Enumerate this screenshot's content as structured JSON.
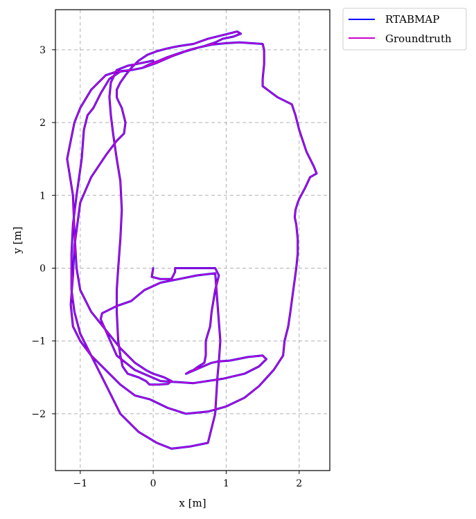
{
  "chart_data": {
    "type": "line",
    "title": "",
    "xlabel": "x [m]",
    "ylabel": "y [m]",
    "xlim": [
      -1.34,
      2.42
    ],
    "ylim": [
      -2.78,
      3.55
    ],
    "xticks": [
      -1,
      0,
      1,
      2
    ],
    "yticks": [
      -2,
      -1,
      0,
      1,
      2,
      3
    ],
    "xtick_labels": [
      "−1",
      "0",
      "1",
      "2"
    ],
    "ytick_labels": [
      "−2",
      "−1",
      "0",
      "1",
      "2",
      "3"
    ],
    "grid": true,
    "legend_position": "outside-top-right",
    "series": [
      {
        "name": "RTABMAP",
        "color": "#0000ff",
        "x": [
          0.0,
          -0.02,
          0.1,
          0.25,
          0.3,
          0.3,
          0.4,
          0.55,
          0.7,
          0.85,
          0.9,
          0.85,
          0.8,
          0.78,
          0.75,
          0.72,
          0.72,
          0.7,
          0.62,
          0.55,
          0.5,
          0.45,
          0.8,
          0.9,
          1.05,
          1.3,
          1.5,
          1.55,
          1.45,
          1.25,
          0.95,
          0.55,
          0.1,
          -0.25,
          -0.5,
          -0.72,
          -0.7,
          -0.5,
          -0.3,
          -0.12,
          0.1,
          0.35,
          0.6,
          0.85,
          0.92,
          0.9,
          0.88,
          0.85,
          0.75,
          0.5,
          0.25,
          0.05,
          -0.2,
          -0.45,
          -0.65,
          -0.85,
          -1.0,
          -1.08,
          -1.12,
          -1.12,
          -1.1,
          -1.05,
          -0.98,
          -0.95,
          -0.9,
          -0.82,
          -0.72,
          -0.6,
          -0.45,
          -0.3,
          -0.15,
          0.05,
          0.28,
          0.45,
          0.62,
          0.8,
          1.0,
          1.18,
          1.5,
          1.52,
          1.52,
          1.5,
          1.5,
          1.7,
          1.9,
          1.95,
          2.0,
          2.1,
          2.2,
          2.24,
          2.15,
          2.08,
          2.0,
          1.98,
          1.95,
          1.94,
          1.96,
          1.98,
          1.98,
          1.96,
          1.92,
          1.88,
          1.85,
          1.8,
          1.78,
          1.65,
          1.45,
          1.25,
          1.0,
          0.75,
          0.45,
          0.2,
          -0.05,
          -0.25,
          -0.45,
          -0.65,
          -0.85,
          -1.0,
          -1.1,
          -1.13,
          -1.1,
          -1.08,
          -1.0,
          -0.85,
          -0.65,
          -0.5,
          -0.4,
          -0.38,
          -0.43,
          -0.48,
          -0.5,
          -0.5,
          -0.45,
          -0.38,
          -0.3,
          -0.2,
          -0.08,
          0.05,
          0.2,
          0.35,
          0.55,
          0.75,
          0.95,
          1.15,
          1.2,
          1.1,
          0.95,
          0.85,
          0.7,
          0.5,
          0.35,
          0.2,
          0.08,
          -0.05,
          -0.15,
          -0.3,
          -0.5,
          -0.65,
          -0.75,
          -0.85,
          -1.0,
          -1.08,
          -1.15,
          -1.18,
          -1.1,
          -1.08,
          -1.05,
          -1.0,
          -0.85,
          -0.65,
          -0.45,
          -0.25,
          -0.1,
          0.0,
          0.15,
          0.25,
          0.2,
          0.08,
          0.02,
          -0.05,
          -0.1,
          -0.2,
          -0.35,
          -0.42,
          -0.45,
          -0.48,
          -0.5,
          -0.5,
          -0.48,
          -0.45,
          -0.43,
          -0.45,
          -0.5,
          -0.55,
          -0.58,
          -0.6,
          -0.58,
          -0.5,
          -0.35,
          -0.15,
          0.0
        ],
        "y": [
          0.0,
          -0.12,
          -0.15,
          -0.15,
          -0.05,
          0.0,
          0.0,
          0.0,
          0.0,
          0.0,
          -0.1,
          -0.3,
          -0.6,
          -0.8,
          -0.9,
          -1.0,
          -1.2,
          -1.3,
          -1.35,
          -1.4,
          -1.42,
          -1.45,
          -1.3,
          -1.28,
          -1.27,
          -1.22,
          -1.2,
          -1.25,
          -1.35,
          -1.45,
          -1.52,
          -1.58,
          -1.55,
          -1.4,
          -1.2,
          -0.7,
          -0.62,
          -0.52,
          -0.45,
          -0.3,
          -0.2,
          -0.15,
          -0.1,
          -0.07,
          -1.0,
          -1.28,
          -1.5,
          -2.0,
          -2.4,
          -2.45,
          -2.48,
          -2.4,
          -2.25,
          -2.0,
          -1.6,
          -1.2,
          -0.9,
          -0.6,
          -0.3,
          0.2,
          0.6,
          1.0,
          1.5,
          1.9,
          2.1,
          2.2,
          2.4,
          2.6,
          2.7,
          2.72,
          2.75,
          2.82,
          2.92,
          2.98,
          3.03,
          3.07,
          3.09,
          3.1,
          3.08,
          3.0,
          2.8,
          2.6,
          2.5,
          2.35,
          2.25,
          2.1,
          1.9,
          1.6,
          1.4,
          1.3,
          1.25,
          1.1,
          0.95,
          0.9,
          0.8,
          0.7,
          0.6,
          0.4,
          0.2,
          0.0,
          -0.3,
          -0.6,
          -0.8,
          -1.0,
          -1.2,
          -1.4,
          -1.62,
          -1.78,
          -1.9,
          -1.97,
          -2.0,
          -1.92,
          -1.8,
          -1.75,
          -1.6,
          -1.4,
          -1.2,
          -1.0,
          -0.8,
          -0.5,
          -0.1,
          0.3,
          0.9,
          1.25,
          1.55,
          1.75,
          1.85,
          2.0,
          2.2,
          2.3,
          2.35,
          2.45,
          2.55,
          2.65,
          2.75,
          2.85,
          2.93,
          2.98,
          3.02,
          3.05,
          3.08,
          3.15,
          3.2,
          3.25,
          3.22,
          3.18,
          3.15,
          3.1,
          3.05,
          3.0,
          2.95,
          2.9,
          2.85,
          2.8,
          2.75,
          2.72,
          2.7,
          2.65,
          2.55,
          2.45,
          2.2,
          2.0,
          1.65,
          1.5,
          1.0,
          0.5,
          0.0,
          -0.3,
          -0.6,
          -0.85,
          -1.1,
          -1.3,
          -1.4,
          -1.45,
          -1.5,
          -1.55,
          -1.59,
          -1.6,
          -1.6,
          -1.6,
          -1.55,
          -1.5,
          -1.45,
          -1.35,
          -1.2,
          -1.0,
          -0.6,
          -0.3,
          0.0,
          0.4,
          0.8,
          1.2,
          1.5,
          1.85,
          2.1,
          2.35,
          2.55,
          2.72,
          2.78,
          2.82,
          2.85
        ]
      },
      {
        "name": "Groundtruth",
        "color": "#cc00cc",
        "x": [
          0.0,
          -0.02,
          0.1,
          0.25,
          0.3,
          0.3,
          0.4,
          0.55,
          0.7,
          0.85,
          0.9,
          0.85,
          0.8,
          0.78,
          0.75,
          0.72,
          0.72,
          0.7,
          0.62,
          0.55,
          0.5,
          0.45,
          0.8,
          0.9,
          1.05,
          1.3,
          1.5,
          1.55,
          1.45,
          1.25,
          0.95,
          0.55,
          0.1,
          -0.25,
          -0.5,
          -0.72,
          -0.7,
          -0.5,
          -0.3,
          -0.12,
          0.1,
          0.35,
          0.6,
          0.85,
          0.92,
          0.9,
          0.88,
          0.85,
          0.75,
          0.5,
          0.25,
          0.05,
          -0.2,
          -0.45,
          -0.65,
          -0.85,
          -1.0,
          -1.08,
          -1.12,
          -1.12,
          -1.1,
          -1.05,
          -0.98,
          -0.95,
          -0.9,
          -0.82,
          -0.72,
          -0.6,
          -0.45,
          -0.3,
          -0.15,
          0.05,
          0.28,
          0.45,
          0.62,
          0.8,
          1.0,
          1.18,
          1.5,
          1.52,
          1.52,
          1.5,
          1.5,
          1.7,
          1.9,
          1.95,
          2.0,
          2.1,
          2.2,
          2.24,
          2.15,
          2.08,
          2.0,
          1.98,
          1.95,
          1.94,
          1.96,
          1.98,
          1.98,
          1.96,
          1.92,
          1.88,
          1.85,
          1.8,
          1.78,
          1.65,
          1.45,
          1.25,
          1.0,
          0.75,
          0.45,
          0.2,
          -0.05,
          -0.25,
          -0.45,
          -0.65,
          -0.85,
          -1.0,
          -1.1,
          -1.13,
          -1.1,
          -1.08,
          -1.0,
          -0.85,
          -0.65,
          -0.5,
          -0.4,
          -0.38,
          -0.43,
          -0.48,
          -0.5,
          -0.5,
          -0.45,
          -0.38,
          -0.3,
          -0.2,
          -0.08,
          0.05,
          0.2,
          0.35,
          0.55,
          0.75,
          0.95,
          1.15,
          1.2,
          1.1,
          0.95,
          0.85,
          0.7,
          0.5,
          0.35,
          0.2,
          0.08,
          -0.05,
          -0.15,
          -0.3,
          -0.5,
          -0.65,
          -0.75,
          -0.85,
          -1.0,
          -1.08,
          -1.15,
          -1.18,
          -1.1,
          -1.08,
          -1.05,
          -1.0,
          -0.85,
          -0.65,
          -0.45,
          -0.25,
          -0.1,
          0.0,
          0.15,
          0.25,
          0.2,
          0.08,
          0.02,
          -0.05,
          -0.1,
          -0.2,
          -0.35,
          -0.42,
          -0.45,
          -0.48,
          -0.5,
          -0.5,
          -0.48,
          -0.45,
          -0.43,
          -0.45,
          -0.5,
          -0.55,
          -0.58,
          -0.6,
          -0.58,
          -0.5,
          -0.35,
          -0.15,
          0.0
        ],
        "y": [
          0.0,
          -0.12,
          -0.15,
          -0.15,
          -0.05,
          0.0,
          0.0,
          0.0,
          0.0,
          0.0,
          -0.1,
          -0.3,
          -0.6,
          -0.8,
          -0.9,
          -1.0,
          -1.2,
          -1.3,
          -1.35,
          -1.4,
          -1.42,
          -1.45,
          -1.3,
          -1.28,
          -1.27,
          -1.22,
          -1.2,
          -1.25,
          -1.35,
          -1.45,
          -1.52,
          -1.58,
          -1.55,
          -1.4,
          -1.2,
          -0.7,
          -0.62,
          -0.52,
          -0.45,
          -0.3,
          -0.2,
          -0.15,
          -0.1,
          -0.07,
          -1.0,
          -1.28,
          -1.5,
          -2.0,
          -2.4,
          -2.45,
          -2.48,
          -2.4,
          -2.25,
          -2.0,
          -1.6,
          -1.2,
          -0.9,
          -0.6,
          -0.3,
          0.2,
          0.6,
          1.0,
          1.5,
          1.9,
          2.1,
          2.2,
          2.4,
          2.6,
          2.7,
          2.72,
          2.75,
          2.82,
          2.92,
          2.98,
          3.03,
          3.07,
          3.09,
          3.1,
          3.08,
          3.0,
          2.8,
          2.6,
          2.5,
          2.35,
          2.25,
          2.1,
          1.9,
          1.6,
          1.4,
          1.3,
          1.25,
          1.1,
          0.95,
          0.9,
          0.8,
          0.7,
          0.6,
          0.4,
          0.2,
          0.0,
          -0.3,
          -0.6,
          -0.8,
          -1.0,
          -1.2,
          -1.4,
          -1.62,
          -1.78,
          -1.9,
          -1.97,
          -2.0,
          -1.92,
          -1.8,
          -1.75,
          -1.6,
          -1.4,
          -1.2,
          -1.0,
          -0.8,
          -0.5,
          -0.1,
          0.3,
          0.9,
          1.25,
          1.55,
          1.75,
          1.85,
          2.0,
          2.2,
          2.3,
          2.35,
          2.45,
          2.55,
          2.65,
          2.75,
          2.85,
          2.93,
          2.98,
          3.02,
          3.05,
          3.08,
          3.15,
          3.2,
          3.25,
          3.22,
          3.18,
          3.15,
          3.1,
          3.05,
          3.0,
          2.95,
          2.9,
          2.85,
          2.8,
          2.75,
          2.72,
          2.7,
          2.65,
          2.55,
          2.45,
          2.2,
          2.0,
          1.65,
          1.5,
          1.0,
          0.5,
          0.0,
          -0.3,
          -0.6,
          -0.85,
          -1.1,
          -1.3,
          -1.4,
          -1.45,
          -1.5,
          -1.55,
          -1.59,
          -1.6,
          -1.6,
          -1.6,
          -1.55,
          -1.5,
          -1.45,
          -1.35,
          -1.2,
          -1.0,
          -0.6,
          -0.3,
          0.0,
          0.4,
          0.8,
          1.2,
          1.5,
          1.85,
          2.1,
          2.35,
          2.55,
          2.72,
          2.78,
          2.82,
          2.85
        ]
      }
    ]
  }
}
